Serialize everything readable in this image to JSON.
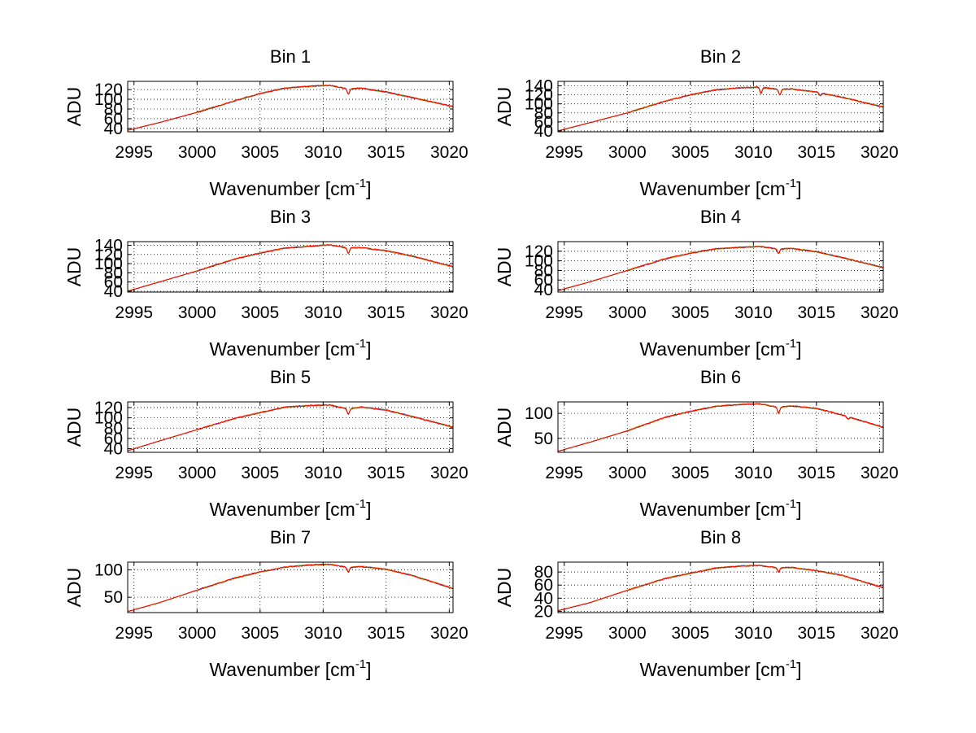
{
  "figure": {
    "background": "#ffffff",
    "series_colors": [
      "#0000ff",
      "#00aa00",
      "#ff9900",
      "#ff0000"
    ]
  },
  "chart_data": [
    {
      "type": "line",
      "title": "Bin 1",
      "xlabel": "Wavenumber [cm",
      "xlabel_sup": "-1",
      "xlabel_close": "]",
      "ylabel": "ADU",
      "xlim": [
        2994.5,
        3020.3
      ],
      "ylim": [
        33,
        137
      ],
      "xticks": [
        2995,
        3000,
        3005,
        3010,
        3015,
        3020
      ],
      "yticks": [
        40,
        60,
        80,
        100,
        120
      ],
      "ytick_labels": [
        "40",
        "60",
        "80",
        "100",
        "120"
      ],
      "grid": true,
      "x": [
        2994.5,
        2997,
        3000,
        3003,
        3005,
        3007,
        3009,
        3010.5,
        3012,
        3013,
        3015,
        3017,
        3020.3
      ],
      "y": [
        36,
        52,
        73,
        97,
        112,
        123,
        127,
        129,
        121,
        123,
        115,
        104,
        85
      ],
      "dips": [
        {
          "x": 3012,
          "depth": 10
        }
      ]
    },
    {
      "type": "line",
      "title": "Bin 2",
      "xlabel": "Wavenumber [cm",
      "xlabel_sup": "-1",
      "xlabel_close": "]",
      "ylabel": "ADU",
      "xlim": [
        2994.5,
        3020.3
      ],
      "ylim": [
        38,
        150
      ],
      "xticks": [
        2995,
        3000,
        3005,
        3010,
        3015,
        3020
      ],
      "yticks": [
        40,
        60,
        80,
        100,
        120,
        140
      ],
      "ytick_labels": [
        "40",
        "60",
        "80",
        "100",
        "120",
        "140"
      ],
      "grid": true,
      "x": [
        2994.5,
        2997,
        3000,
        3003,
        3005,
        3007,
        3009,
        3010.5,
        3012,
        3013,
        3015,
        3017,
        3020.3
      ],
      "y": [
        40,
        58,
        80,
        106,
        120,
        131,
        136,
        137,
        132,
        133,
        126,
        115,
        93
      ],
      "dips": [
        {
          "x": 3010.6,
          "depth": 14
        },
        {
          "x": 3012.1,
          "depth": 12
        },
        {
          "x": 3015.3,
          "depth": 6
        }
      ]
    },
    {
      "type": "line",
      "title": "Bin 3",
      "xlabel": "Wavenumber [cm",
      "xlabel_sup": "-1",
      "xlabel_close": "]",
      "ylabel": "ADU",
      "xlim": [
        2994.5,
        3020.3
      ],
      "ylim": [
        38,
        148
      ],
      "xticks": [
        2995,
        3000,
        3005,
        3010,
        3015,
        3020
      ],
      "yticks": [
        40,
        60,
        80,
        100,
        120,
        140
      ],
      "ytick_labels": [
        "40",
        "60",
        "80",
        "100",
        "120",
        "140"
      ],
      "grid": true,
      "x": [
        2994.5,
        2997,
        3000,
        3003,
        3005,
        3007,
        3009,
        3010.5,
        3012,
        3013,
        3015,
        3017,
        3020.3
      ],
      "y": [
        40,
        60,
        84,
        110,
        123,
        134,
        138,
        141,
        134,
        135,
        128,
        117,
        93
      ],
      "dips": [
        {
          "x": 3012,
          "depth": 12
        }
      ]
    },
    {
      "type": "line",
      "title": "Bin 4",
      "xlabel": "Wavenumber [cm",
      "xlabel_sup": "-1",
      "xlabel_close": "]",
      "ylabel": "ADU",
      "xlim": [
        2994.5,
        3020.3
      ],
      "ylim": [
        35,
        140
      ],
      "xticks": [
        2995,
        3000,
        3005,
        3010,
        3015,
        3020
      ],
      "yticks": [
        40,
        60,
        80,
        100,
        120
      ],
      "ytick_labels": [
        "40",
        "60",
        "80",
        "100",
        "120"
      ],
      "grid": true,
      "x": [
        2994.5,
        2997,
        3000,
        3003,
        3005,
        3007,
        3009,
        3010.5,
        3012,
        3013,
        3015,
        3017,
        3020.3
      ],
      "y": [
        38,
        56,
        80,
        104,
        116,
        125,
        128,
        130,
        124,
        126,
        119,
        107,
        86
      ],
      "dips": [
        {
          "x": 3012,
          "depth": 9
        }
      ]
    },
    {
      "type": "line",
      "title": "Bin 5",
      "xlabel": "Wavenumber [cm",
      "xlabel_sup": "-1",
      "xlabel_close": "]",
      "ylabel": "ADU",
      "xlim": [
        2994.5,
        3020.3
      ],
      "ylim": [
        33,
        131
      ],
      "xticks": [
        2995,
        3000,
        3005,
        3010,
        3015,
        3020
      ],
      "yticks": [
        40,
        60,
        80,
        100,
        120
      ],
      "ytick_labels": [
        "40",
        "60",
        "80",
        "100",
        "120"
      ],
      "grid": true,
      "x": [
        2994.5,
        2997,
        3000,
        3003,
        3005,
        3007,
        3009,
        3010.5,
        3012,
        3013,
        3015,
        3017,
        3020.3
      ],
      "y": [
        36,
        55,
        77,
        99,
        110,
        121,
        124,
        125,
        117,
        121,
        115,
        103,
        82
      ],
      "dips": [
        {
          "x": 3012,
          "depth": 10
        }
      ]
    },
    {
      "type": "line",
      "title": "Bin 6",
      "xlabel": "Wavenumber [cm",
      "xlabel_sup": "-1",
      "xlabel_close": "]",
      "ylabel": "ADU",
      "xlim": [
        2994.5,
        3020.3
      ],
      "ylim": [
        22,
        123
      ],
      "xticks": [
        2995,
        3000,
        3005,
        3010,
        3015,
        3020
      ],
      "yticks": [
        50,
        100
      ],
      "ytick_labels": [
        "50",
        "100"
      ],
      "grid": true,
      "x": [
        2994.5,
        2997,
        3000,
        3003,
        3005,
        3007,
        3009,
        3010.5,
        3012,
        3013,
        3015,
        3017,
        3020.3
      ],
      "y": [
        24,
        42,
        65,
        92,
        104,
        114,
        118,
        119,
        112,
        115,
        110,
        97,
        72
      ],
      "dips": [
        {
          "x": 3012,
          "depth": 12
        },
        {
          "x": 3017.5,
          "depth": 5
        }
      ]
    },
    {
      "type": "line",
      "title": "Bin 7",
      "xlabel": "Wavenumber [cm",
      "xlabel_sup": "-1",
      "xlabel_close": "]",
      "ylabel": "ADU",
      "xlim": [
        2994.5,
        3020.3
      ],
      "ylim": [
        22,
        114
      ],
      "xticks": [
        2995,
        3000,
        3005,
        3010,
        3015,
        3020
      ],
      "yticks": [
        50,
        100
      ],
      "ytick_labels": [
        "50",
        "100"
      ],
      "grid": true,
      "x": [
        2994.5,
        2997,
        3000,
        3003,
        3005,
        3007,
        3009,
        3010.5,
        3012,
        3013,
        3015,
        3017,
        3020.3
      ],
      "y": [
        24,
        40,
        63,
        85,
        96,
        105,
        109,
        110,
        104,
        106,
        101,
        90,
        66
      ],
      "dips": [
        {
          "x": 3012,
          "depth": 8
        }
      ]
    },
    {
      "type": "line",
      "title": "Bin 8",
      "xlabel": "Wavenumber [cm",
      "xlabel_sup": "-1",
      "xlabel_close": "]",
      "ylabel": "ADU",
      "xlim": [
        2994.5,
        3020.3
      ],
      "ylim": [
        18,
        95
      ],
      "xticks": [
        2995,
        3000,
        3005,
        3010,
        3015,
        3020
      ],
      "yticks": [
        20,
        40,
        60,
        80
      ],
      "ytick_labels": [
        "20",
        "40",
        "60",
        "80"
      ],
      "grid": true,
      "x": [
        2994.5,
        2997,
        3000,
        3003,
        3005,
        3007,
        3009,
        3010.5,
        3012,
        3013,
        3015,
        3017,
        3020.3
      ],
      "y": [
        21,
        33,
        52,
        70,
        78,
        86,
        89,
        90,
        86,
        87,
        82,
        75,
        56
      ],
      "dips": [
        {
          "x": 3012,
          "depth": 6
        }
      ]
    }
  ]
}
